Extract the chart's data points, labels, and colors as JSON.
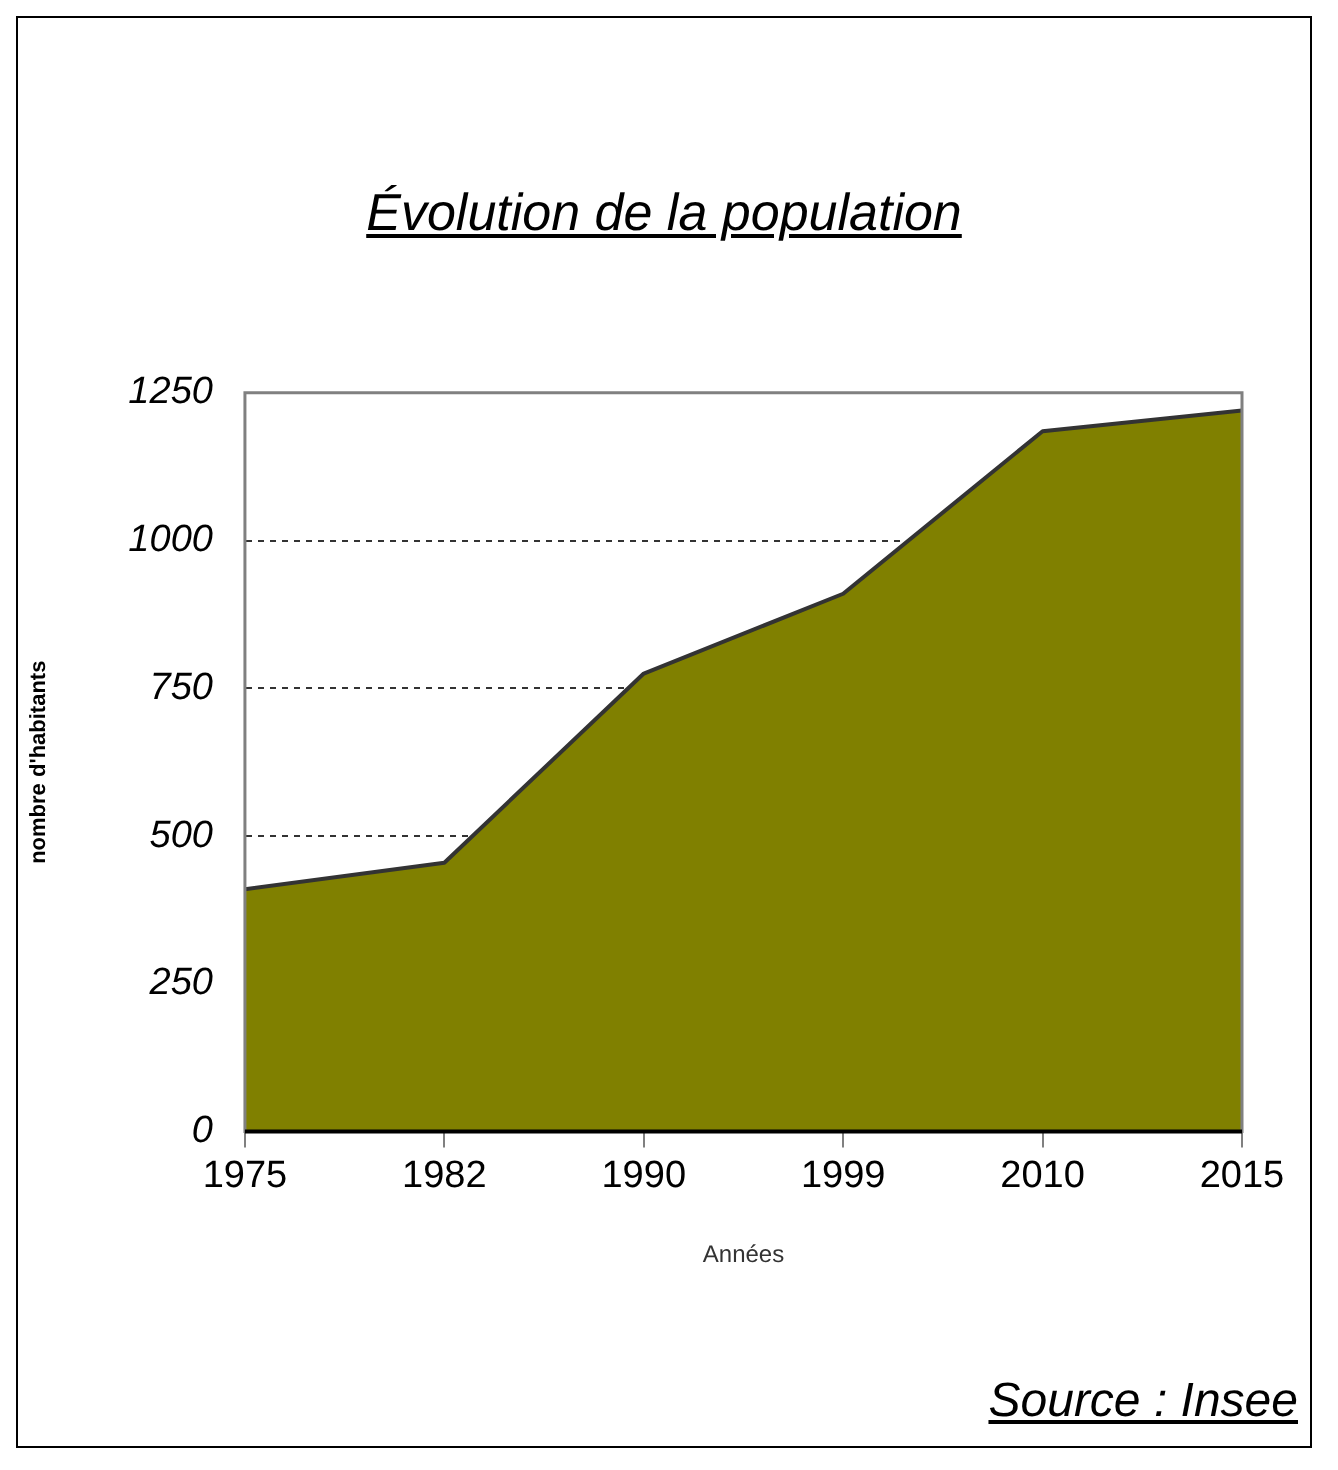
{
  "chart_data": {
    "type": "area",
    "title": "Évolution de la population",
    "xlabel": "Années",
    "ylabel": "nombre d'habitants",
    "categories": [
      "1975",
      "1982",
      "1990",
      "1999",
      "2010",
      "2015"
    ],
    "series": [
      {
        "color": "#808000",
        "values": [
          410,
          455,
          775,
          910,
          1185,
          1220
        ]
      }
    ],
    "ylim": [
      0,
      1250
    ],
    "yticks": [
      0,
      250,
      500,
      750,
      1000,
      1250
    ],
    "grid": "y",
    "line_style": "solid",
    "marker": "none",
    "legend": false,
    "annotations": [
      "Source : Insee"
    ]
  }
}
